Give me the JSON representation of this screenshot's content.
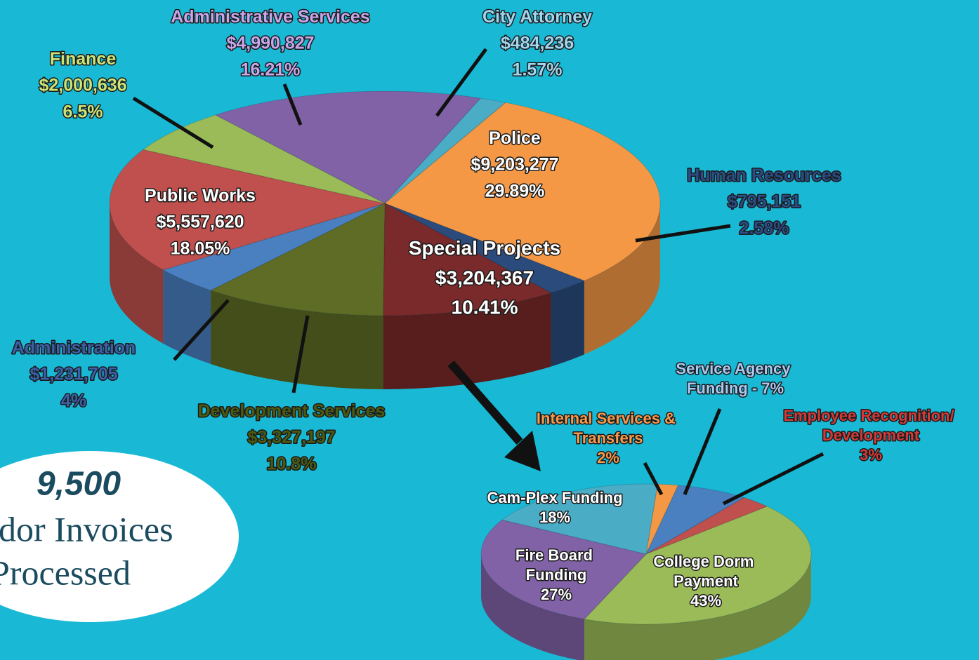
{
  "chart_data": [
    {
      "type": "pie",
      "names": [
        "Administrative Services",
        "City Attorney",
        "Police",
        "Human Resources",
        "Special Projects",
        "Development  Services",
        "Administration",
        "Public Works",
        "Finance"
      ],
      "values": [
        16.21,
        1.57,
        29.89,
        2.58,
        10.41,
        10.8,
        4,
        18.05,
        6.5
      ],
      "value_labels": [
        "16.21%",
        "1.57%",
        "29.89%",
        "2.58%",
        "10.41%",
        "10.8%",
        "4%",
        "18.05%",
        "6.5%"
      ],
      "amounts": [
        4990827,
        484236,
        9203277,
        795151,
        3204367,
        3327197,
        1231705,
        5557620,
        2000636
      ],
      "amount_labels": [
        "$4,990,827",
        "$484,236",
        "$9,203,277",
        "$795,151",
        "$3,204,367",
        "$3,327,197",
        "$1,231,705",
        "$5,557,620",
        "$2,000,636"
      ],
      "colors": [
        "#8162a6",
        "#4bacc6",
        "#f59845",
        "#2a4b7c",
        "#7a2a2a",
        "#5f6c25",
        "#4a7fc0",
        "#c0504d",
        "#9bbb59"
      ],
      "label_colors": [
        "#c8a6ec",
        "#a2d6ef",
        "#ffffff",
        "#2b4c86",
        "#ffffff",
        "#4b5a12",
        "#3c5fa8",
        "#ffffff",
        "#cbe477"
      ]
    },
    {
      "type": "pie",
      "names": [
        "Internal Services & Transfers",
        "Service Agency Funding - 7%",
        "Employee Recognition/ Development",
        "College Dorm Payment",
        "Fire Board Funding",
        "Cam-Plex Funding"
      ],
      "values": [
        2,
        7,
        3,
        43,
        27,
        18
      ],
      "value_labels": [
        "2%",
        null,
        "3%",
        "43%",
        "27%",
        "18%"
      ],
      "colors": [
        "#f59845",
        "#4a7fc0",
        "#c0504d",
        "#9bbb59",
        "#8162a6",
        "#4bacc6"
      ],
      "label_colors": [
        "#f79a4c",
        "#a9c9f1",
        "#d23a3a",
        "#ffffff",
        "#ffffff",
        "#ffffff"
      ]
    }
  ],
  "callout": {
    "number": "9,500",
    "lines": [
      "dor Invoices",
      "Processed"
    ]
  }
}
